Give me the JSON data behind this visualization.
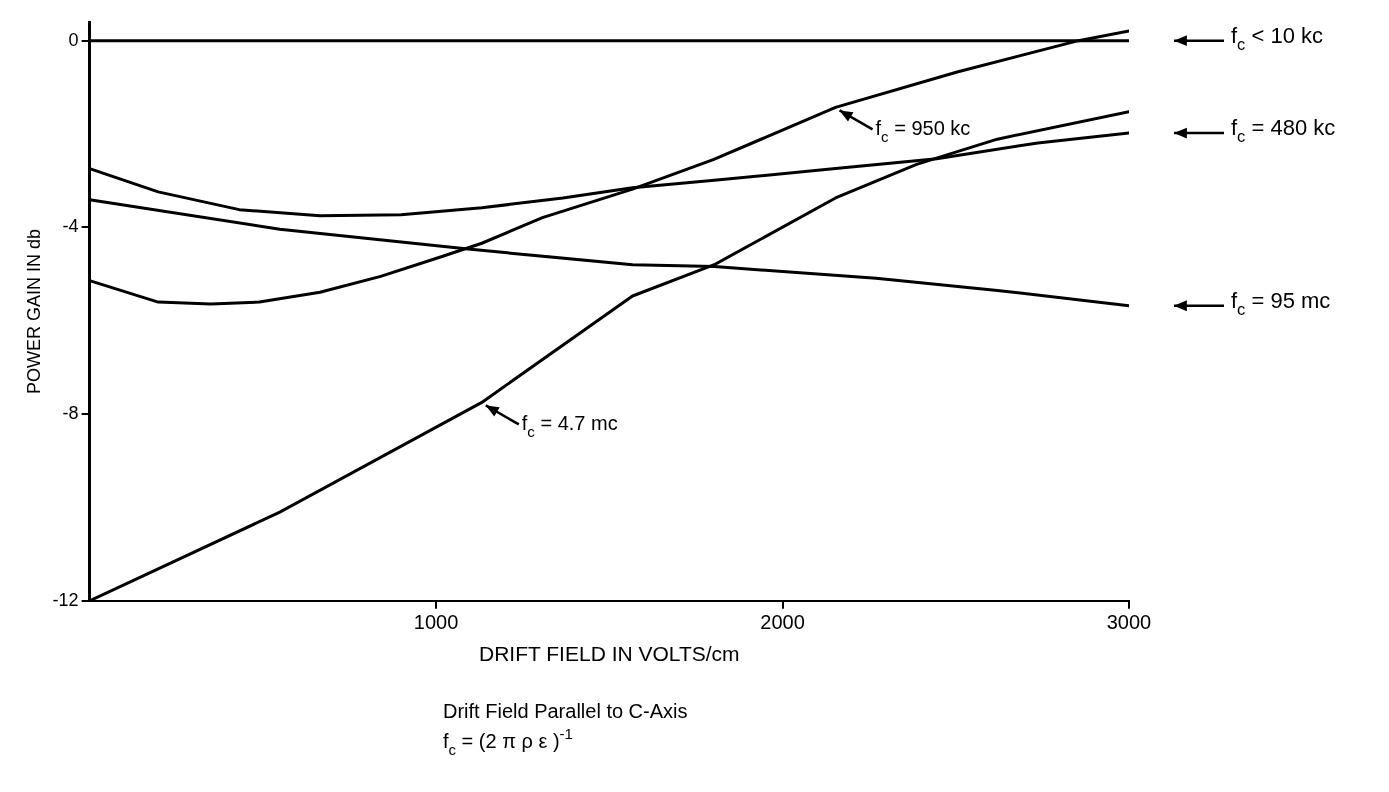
{
  "chart_data": {
    "type": "line",
    "xlabel": "DRIFT FIELD IN VOLTS/cm",
    "ylabel": "POWER GAIN IN db",
    "xlim": [
      0,
      3000
    ],
    "xticks": [
      1000,
      2000,
      3000
    ],
    "ylim": [
      -12,
      0.4
    ],
    "yticks": [
      0,
      -4,
      -8,
      -12
    ],
    "grid": false,
    "legend": "right",
    "marker": "none",
    "line_style": "solid",
    "series": [
      {
        "name": "f$_{c}$ < 10 kc",
        "color": "#000000",
        "x": [
          0,
          1000,
          2000,
          3000
        ],
        "values": [
          0,
          0,
          0,
          0
        ]
      },
      {
        "color": "#000000",
        "x": [
          0,
          198,
          350,
          490,
          665,
          840,
          1015,
          1132,
          1307,
          1567,
          1800,
          2153,
          2504,
          2854,
          3000
        ],
        "values": [
          -5.14,
          -5.6,
          -5.64,
          -5.6,
          -5.39,
          -5.05,
          -4.63,
          -4.34,
          -3.79,
          -3.18,
          -2.55,
          -1.43,
          -0.67,
          0,
          0.21
        ]
      },
      {
        "name": "f$_{c}$ = 480 kc",
        "color": "#000000",
        "x": [
          0,
          198,
          432,
          665,
          899,
          1132,
          1366,
          1567,
          1803,
          2153,
          2445,
          2737,
          3000
        ],
        "values": [
          -2.74,
          -3.24,
          -3.62,
          -3.75,
          -3.73,
          -3.58,
          -3.37,
          -3.15,
          -2.99,
          -2.74,
          -2.53,
          -2.19,
          -1.98
        ]
      },
      {
        "color": "#000000",
        "x": [
          0,
          549,
          1132,
          1567,
          1803,
          2153,
          2387,
          2620,
          3000
        ],
        "values": [
          -12,
          -10.1,
          -7.75,
          -5.47,
          -4.8,
          -3.37,
          -2.65,
          -2.11,
          -1.52
        ]
      },
      {
        "name": "f$_{c}$ = 95 mc",
        "color": "#000000",
        "x": [
          0,
          549,
          1085,
          1567,
          1803,
          2270,
          2620,
          3000
        ],
        "values": [
          -3.41,
          -4.04,
          -4.46,
          -4.8,
          -4.84,
          -5.09,
          -5.35,
          -5.68
        ]
      }
    ],
    "annotations": [
      {
        "text": "f$_{c}$ = 950 kc",
        "x": 2153,
        "y": -1.43
      },
      {
        "text": "f$_{c}$ = 4.7 mc",
        "x": 1132,
        "y": -7.75
      },
      "Drift Field Parallel to C-Axis",
      "f$_{c}$ = (2 π ρ ε )$^{-1}$"
    ]
  }
}
